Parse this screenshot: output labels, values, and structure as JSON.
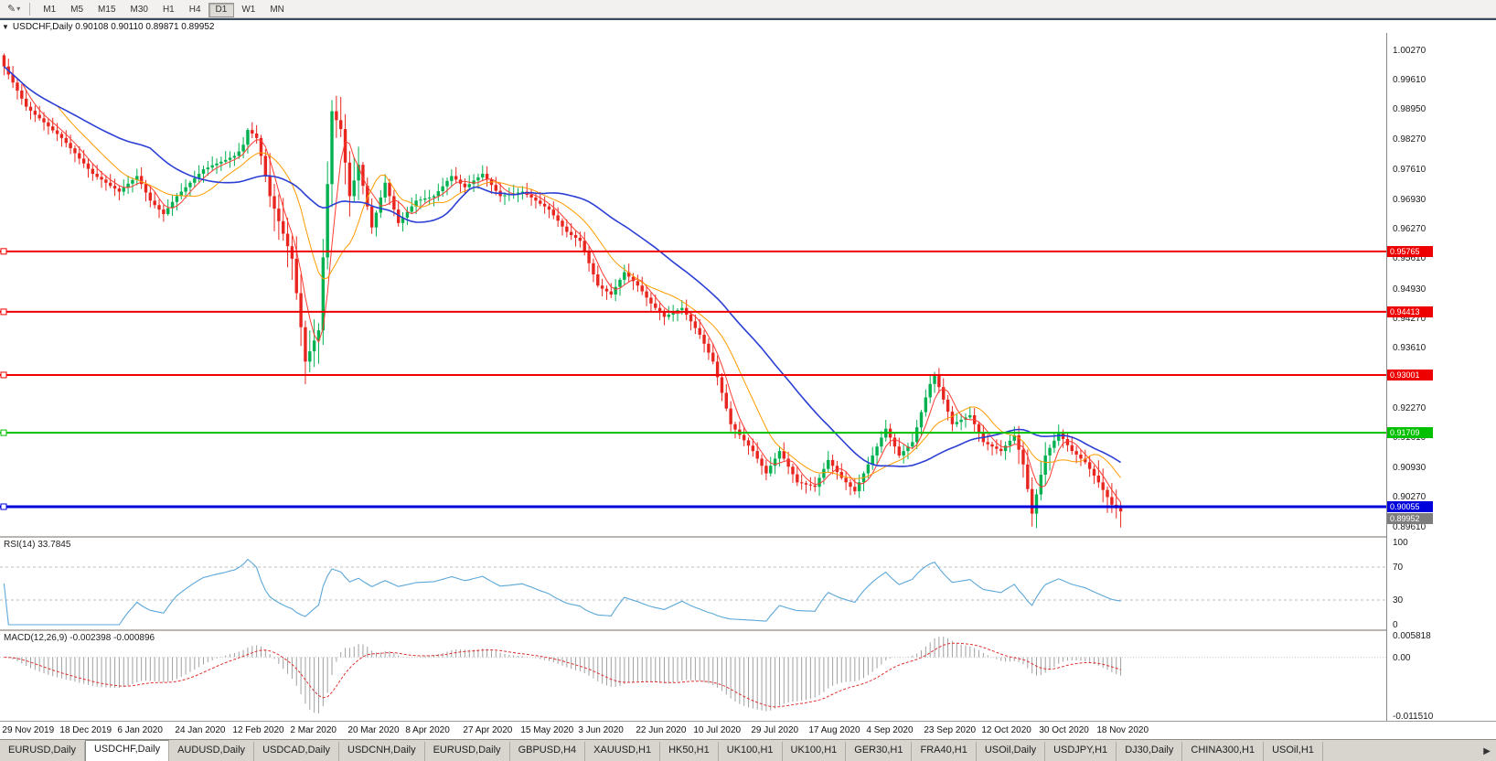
{
  "toolbar": {
    "tool_icon": "✎",
    "dropdown_icon": "▾",
    "timeframes": [
      "M1",
      "M5",
      "M15",
      "M30",
      "H1",
      "H4",
      "D1",
      "W1",
      "MN"
    ],
    "active_timeframe": "D1"
  },
  "chart": {
    "collapse_icon": "▼",
    "title": "USDCHF,Daily 0.90108 0.90110 0.89871 0.89952",
    "symbol": "USDCHF",
    "period": "Daily",
    "hlines": [
      {
        "label": "0.95765",
        "value": 0.95765,
        "color": "#ee0000",
        "width": 2
      },
      {
        "label": "0.94413",
        "value": 0.94413,
        "color": "#ee0000",
        "width": 2
      },
      {
        "label": "0.93001",
        "value": 0.93001,
        "color": "#ee0000",
        "width": 2
      },
      {
        "label": "0.91709",
        "value": 0.91709,
        "color": "#00c000",
        "width": 2
      },
      {
        "label": "0.90055",
        "value": 0.90055,
        "color": "#0000dd",
        "width": 3
      }
    ],
    "current_price_tag": {
      "label": "0.89952",
      "value": 0.89952,
      "color": "#7d7d7d"
    },
    "price_axis_labels": [
      "1.00270",
      "0.99610",
      "0.98950",
      "0.98270",
      "0.97610",
      "0.96930",
      "0.96270",
      "0.95610",
      "0.94930",
      "0.94270",
      "0.93610",
      "0.92930",
      "0.92270",
      "0.91610",
      "0.90930",
      "0.90270",
      "0.89610"
    ]
  },
  "rsi_panel": {
    "label": "RSI(14) 33.7845",
    "axis_labels": [
      {
        "text": "100",
        "value": 100
      },
      {
        "text": "70",
        "value": 70
      },
      {
        "text": "30",
        "value": 30
      },
      {
        "text": "0",
        "value": 0
      }
    ],
    "dashed_levels": [
      70,
      30
    ],
    "line_color": "#5ba7d9"
  },
  "macd_panel": {
    "label": "MACD(12,26,9) -0.002398 -0.000896",
    "axis_top": "0.005818",
    "axis_zero": "0.00",
    "axis_bottom": "-0.011510",
    "histogram_color": "#a0a0a0",
    "signal_color": "#e03030"
  },
  "date_axis": {
    "label_every_candles": 13,
    "labels": [
      "29 Nov 2019",
      "18 Dec 2019",
      "6 Jan 2020",
      "24 Jan 2020",
      "12 Feb 2020",
      "2 Mar 2020",
      "20 Mar 2020",
      "8 Apr 2020",
      "27 Apr 2020",
      "15 May 2020",
      "3 Jun 2020",
      "22 Jun 2020",
      "10 Jul 2020",
      "29 Jul 2020",
      "17 Aug 2020",
      "4 Sep 2020",
      "23 Sep 2020",
      "12 Oct 2020",
      "30 Oct 2020",
      "18 Nov 2020"
    ]
  },
  "tabs": {
    "overflow_icon": "▶",
    "items": [
      {
        "label": "EURUSD,Daily",
        "active": false
      },
      {
        "label": "USDCHF,Daily",
        "active": true
      },
      {
        "label": "AUDUSD,Daily",
        "active": false
      },
      {
        "label": "USDCAD,Daily",
        "active": false
      },
      {
        "label": "USDCNH,Daily",
        "active": false
      },
      {
        "label": "EURUSD,Daily",
        "active": false
      },
      {
        "label": "GBPUSD,H4",
        "active": false
      },
      {
        "label": "XAUUSD,H1",
        "active": false
      },
      {
        "label": "HK50,H1",
        "active": false
      },
      {
        "label": "UK100,H1",
        "active": false
      },
      {
        "label": "UK100,H1",
        "active": false
      },
      {
        "label": "GER30,H1",
        "active": false
      },
      {
        "label": "FRA40,H1",
        "active": false
      },
      {
        "label": "USOil,Daily",
        "active": false
      },
      {
        "label": "USDJPY,H1",
        "active": false
      },
      {
        "label": "DJ30,Daily",
        "active": false
      },
      {
        "label": "CHINA300,H1",
        "active": false
      },
      {
        "label": "USOil,H1",
        "active": false
      }
    ]
  },
  "chart_data": {
    "type": "candlestick",
    "symbol": "USDCHF",
    "timeframe": "D1",
    "ylim": [
      0.894,
      1.0065
    ],
    "colors": {
      "up": "#00b14f",
      "down": "#e8261f",
      "ma_fast": "#ff3b30",
      "ma_mid": "#ff9b00",
      "ma_slow": "#2b3fd4"
    },
    "ma_periods": {
      "fast": 5,
      "mid": 13,
      "slow": 34
    },
    "closes": [
      0.999,
      0.9972,
      0.9954,
      0.9936,
      0.9918,
      0.99,
      0.9891,
      0.9882,
      0.9874,
      0.9865,
      0.9856,
      0.9847,
      0.9839,
      0.983,
      0.9819,
      0.9807,
      0.9796,
      0.9784,
      0.9773,
      0.9761,
      0.975,
      0.9743,
      0.9737,
      0.973,
      0.9723,
      0.9717,
      0.971,
      0.9719,
      0.9728,
      0.9736,
      0.9745,
      0.9727,
      0.9708,
      0.969,
      0.968,
      0.967,
      0.966,
      0.9673,
      0.9687,
      0.97,
      0.971,
      0.972,
      0.973,
      0.974,
      0.975,
      0.976,
      0.9764,
      0.9769,
      0.9773,
      0.9777,
      0.9781,
      0.9786,
      0.979,
      0.98,
      0.9815,
      0.9848,
      0.984,
      0.983,
      0.979,
      0.9745,
      0.97,
      0.9672,
      0.9644,
      0.9616,
      0.9588,
      0.956,
      0.9483,
      0.9407,
      0.933,
      0.9353,
      0.9377,
      0.94,
      0.9563,
      0.9727,
      0.989,
      0.987,
      0.985,
      0.9775,
      0.97,
      0.9735,
      0.977,
      0.9723,
      0.9677,
      0.963,
      0.9663,
      0.9697,
      0.973,
      0.97,
      0.967,
      0.964,
      0.9652,
      0.9665,
      0.9677,
      0.969,
      0.9692,
      0.9695,
      0.9697,
      0.97,
      0.9711,
      0.9722,
      0.9734,
      0.9745,
      0.9737,
      0.9728,
      0.972,
      0.9727,
      0.9735,
      0.9742,
      0.975,
      0.9737,
      0.9725,
      0.9712,
      0.97,
      0.9702,
      0.9704,
      0.9706,
      0.9708,
      0.971,
      0.9703,
      0.9697,
      0.969,
      0.9683,
      0.9677,
      0.967,
      0.9657,
      0.9645,
      0.9632,
      0.962,
      0.9613,
      0.9607,
      0.96,
      0.9575,
      0.955,
      0.9525,
      0.95,
      0.9493,
      0.9487,
      0.948,
      0.9497,
      0.9513,
      0.953,
      0.952,
      0.951,
      0.95,
      0.9487,
      0.9473,
      0.946,
      0.945,
      0.944,
      0.943,
      0.9435,
      0.944,
      0.9445,
      0.945,
      0.9435,
      0.942,
      0.9405,
      0.939,
      0.937,
      0.935,
      0.933,
      0.9295,
      0.926,
      0.9225,
      0.919,
      0.9178,
      0.9166,
      0.9154,
      0.9142,
      0.913,
      0.9113,
      0.9097,
      0.908,
      0.9097,
      0.9113,
      0.913,
      0.9113,
      0.9095,
      0.9078,
      0.906,
      0.9058,
      0.9055,
      0.9053,
      0.905,
      0.907,
      0.909,
      0.911,
      0.9097,
      0.9083,
      0.907,
      0.906,
      0.905,
      0.904,
      0.906,
      0.908,
      0.91,
      0.912,
      0.914,
      0.916,
      0.918,
      0.916,
      0.914,
      0.912,
      0.913,
      0.914,
      0.915,
      0.9183,
      0.9217,
      0.925,
      0.928,
      0.93,
      0.9273,
      0.9245,
      0.9218,
      0.919,
      0.9195,
      0.92,
      0.9205,
      0.921,
      0.919,
      0.917,
      0.915,
      0.9145,
      0.914,
      0.9135,
      0.913,
      0.9142,
      0.9153,
      0.9165,
      0.9133,
      0.91,
      0.9045,
      0.899,
      0.9033,
      0.9077,
      0.912,
      0.9137,
      0.9153,
      0.917,
      0.9157,
      0.9143,
      0.913,
      0.9122,
      0.9113,
      0.9105,
      0.909,
      0.9075,
      0.906,
      0.9043,
      0.9027,
      0.901,
      0.9002,
      0.8995
    ]
  }
}
